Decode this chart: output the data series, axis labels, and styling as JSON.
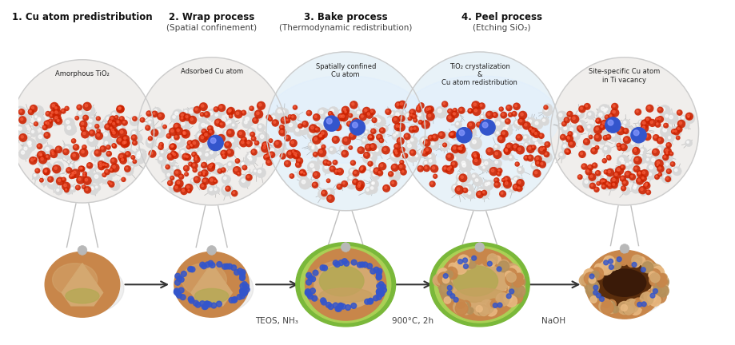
{
  "bg_color": "#ffffff",
  "fig_width": 9.2,
  "fig_height": 4.32,
  "dpi": 100,
  "step1_title": "1. Cu atom predistribution",
  "step2_title": "2. Wrap process",
  "step2_sub": "(Spatial confinement)",
  "step3_title": "3. Bake process",
  "step3_sub": "(Thermodynamic redistribution)",
  "step4_title": "4. Peel process",
  "step4_sub": "(Etching SiO₂)",
  "bubble_labels": [
    "Amorphous TiO₂",
    "Adsorbed Cu atom",
    "Spatially confined\nCu atom",
    "TiO₂ crystalization\n&\nCu atom redistribution",
    "Site-specific Cu atom\nin Ti vacancy"
  ],
  "arrow_labels": [
    "TEOS, NH₃",
    "900°C, 2h",
    "NaOH"
  ],
  "colors": {
    "connector_color": "#b0b0b0",
    "arrow_color": "#333333",
    "title_color": "#111111",
    "label_color": "#444444",
    "red_atom": "#cc2200",
    "white_atom": "#d8d8d8",
    "blue_atom": "#3355cc",
    "bond_color": "#888888",
    "bubble_bg1": "#f0eeec",
    "bubble_bg2": "#f0eeec",
    "bubble_bg3": "#e8f2f8",
    "bubble_bg4": "#e8f2f8",
    "bubble_bg5": "#f0eeec",
    "bubble_border": "#cccccc",
    "sphere_tan": "#c8864a",
    "sphere_tan_light": "#d4a870",
    "sphere_green_ring": "#7ab83a",
    "sphere_green_light": "#9dd055",
    "sphere_inner_olive": "#b5a855",
    "sphere_brown": "#8B5E3C",
    "sphere_dark_brown": "#5a2d0c",
    "sphere_grey_node": "#a0a0a0",
    "sphere_grey_node_dark": "#707070"
  }
}
